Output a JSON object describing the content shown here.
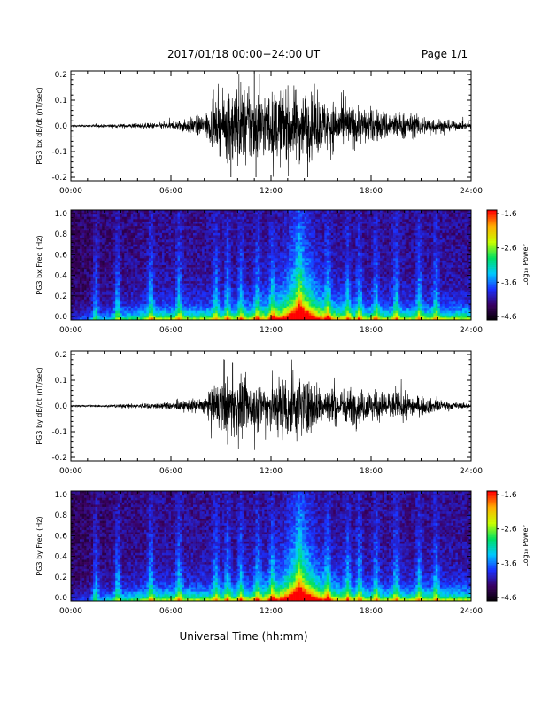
{
  "header": {
    "title": "2017/01/18  00:00−24:00 UT",
    "page": "Page 1/1"
  },
  "xaxis": {
    "label": "Universal Time (hh:mm)",
    "ticks": [
      "00:00",
      "06:00",
      "12:00",
      "18:00",
      "24:00"
    ],
    "range_hours": [
      0,
      24
    ]
  },
  "colorbar": {
    "label": "Log₁₀ Power",
    "ticks": [
      "-1.6",
      "-2.6",
      "-3.6",
      "-4.6"
    ],
    "range": [
      -4.6,
      -1.6
    ],
    "colormap": [
      "#000000",
      "#3a0060",
      "#1a30ff",
      "#00c8ff",
      "#00e060",
      "#c8ff00",
      "#ffb000",
      "#ff0000"
    ]
  },
  "chart_data": [
    {
      "type": "line",
      "ylabel": "PG3 bx dB/dt (nT/sec)",
      "ylim": [
        -0.2,
        0.2
      ],
      "yticks": [
        "0.2",
        "0.1",
        "0.0",
        "-0.1",
        "-0.2"
      ],
      "x_hours": [
        0,
        2,
        4,
        6,
        7,
        8,
        9,
        10,
        11,
        12,
        13,
        14,
        15,
        16,
        17,
        18,
        19,
        20,
        21,
        22,
        23,
        24
      ],
      "envelope_amplitude": [
        0.003,
        0.005,
        0.008,
        0.012,
        0.025,
        0.04,
        0.09,
        0.15,
        0.12,
        0.11,
        0.13,
        0.12,
        0.09,
        0.08,
        0.07,
        0.06,
        0.05,
        0.045,
        0.035,
        0.025,
        0.015,
        0.01
      ],
      "spikes": [
        {
          "x": 9.6,
          "y": -0.2
        },
        {
          "x": 11.0,
          "y": 0.2
        },
        {
          "x": 11.3,
          "y": 0.2
        },
        {
          "x": 14.2,
          "y": -0.2
        },
        {
          "x": 11.1,
          "y": -0.2
        }
      ]
    },
    {
      "type": "heatmap",
      "ylabel": "PG3 bx Freq (Hz)",
      "ylim": [
        0,
        1.0
      ],
      "yticks": [
        "1.0",
        "0.8",
        "0.6",
        "0.4",
        "0.2",
        "0.0"
      ],
      "activity_peak_hours": [
        13.5,
        14.0
      ],
      "bright_bands_hours": [
        1.5,
        2.8,
        4.8,
        6.5,
        8.7,
        9.4,
        10.2,
        11.2,
        12.1,
        13.7,
        15.4,
        16.6,
        17.3,
        18.3,
        19.5,
        20.9,
        21.9
      ]
    },
    {
      "type": "line",
      "ylabel": "PG3 by dB/dt (nT/sec)",
      "ylim": [
        -0.2,
        0.2
      ],
      "yticks": [
        "0.2",
        "0.1",
        "0.0",
        "-0.1",
        "-0.2"
      ],
      "x_hours": [
        0,
        2,
        4,
        6,
        7,
        8,
        9,
        10,
        11,
        12,
        13,
        14,
        15,
        16,
        17,
        18,
        19,
        20,
        21,
        22,
        23,
        24
      ],
      "envelope_amplitude": [
        0.003,
        0.004,
        0.008,
        0.012,
        0.02,
        0.03,
        0.09,
        0.1,
        0.08,
        0.09,
        0.12,
        0.1,
        0.07,
        0.06,
        0.06,
        0.05,
        0.05,
        0.045,
        0.03,
        0.02,
        0.012,
        0.008
      ],
      "spikes": [
        {
          "x": 9.2,
          "y": 0.18
        },
        {
          "x": 9.7,
          "y": 0.17
        },
        {
          "x": 9.4,
          "y": -0.15
        }
      ]
    },
    {
      "type": "heatmap",
      "ylabel": "PG3 by Freq (Hz)",
      "ylim": [
        0,
        1.0
      ],
      "yticks": [
        "1.0",
        "0.8",
        "0.6",
        "0.4",
        "0.2",
        "0.0"
      ],
      "activity_peak_hours": [
        13.5,
        14.0
      ],
      "bright_bands_hours": [
        1.5,
        2.8,
        4.8,
        6.5,
        8.7,
        9.4,
        10.2,
        11.2,
        12.1,
        13.7,
        15.4,
        16.6,
        17.3,
        18.3,
        19.5,
        20.9,
        21.9
      ]
    }
  ]
}
